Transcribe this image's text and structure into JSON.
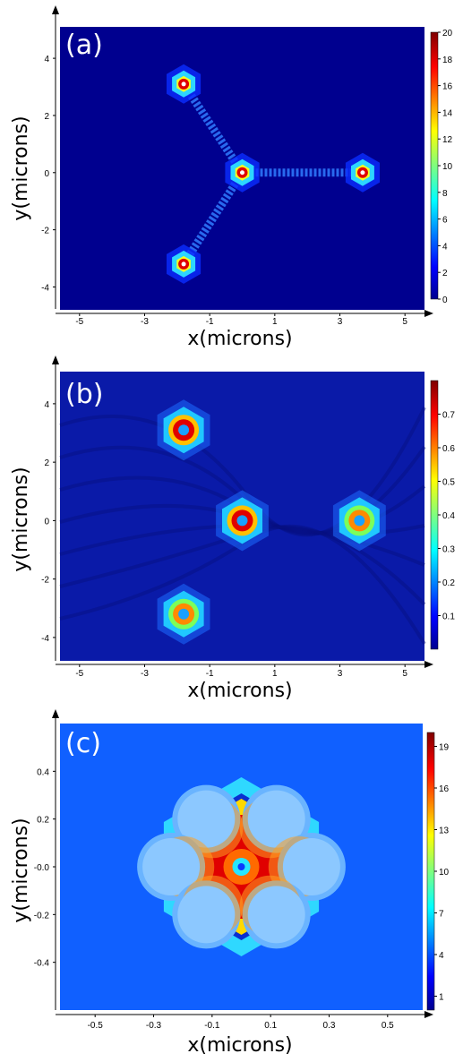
{
  "chart_data": [
    {
      "type": "heatmap",
      "panel_label": "(a)",
      "xlabel": "x(microns)",
      "ylabel": "y(microns)",
      "xlim": [
        -5.6,
        5.6
      ],
      "ylim": [
        -4.8,
        5.1
      ],
      "xticks": [
        "-5",
        "-3",
        "-1",
        "1",
        "3",
        "5"
      ],
      "xtick_values": [
        -5,
        -3,
        -1,
        1,
        3,
        5
      ],
      "yticks": [
        "4",
        "2",
        "0",
        "-2",
        "-4"
      ],
      "ytick_values": [
        4,
        2,
        0,
        -2,
        -4
      ],
      "colorbar": {
        "min": 0,
        "max": 20,
        "ticks": [
          "20",
          "18",
          "16",
          "14",
          "12",
          "10",
          "8",
          "6",
          "4",
          "2",
          "0"
        ],
        "tick_values": [
          20,
          18,
          16,
          14,
          12,
          10,
          8,
          6,
          4,
          2,
          0
        ]
      },
      "features": [
        {
          "kind": "spot",
          "x": -1.8,
          "y": 3.1,
          "peak": 20
        },
        {
          "kind": "spot",
          "x": 0.0,
          "y": 0.0,
          "peak": 20
        },
        {
          "kind": "spot",
          "x": 3.7,
          "y": 0.0,
          "peak": 20
        },
        {
          "kind": "spot",
          "x": -1.8,
          "y": -3.2,
          "peak": 20
        },
        {
          "kind": "waveguide",
          "from": [
            0.0,
            0.0
          ],
          "to": [
            -1.8,
            3.1
          ]
        },
        {
          "kind": "waveguide",
          "from": [
            0.0,
            0.0
          ],
          "to": [
            3.7,
            0.0
          ]
        },
        {
          "kind": "waveguide",
          "from": [
            0.0,
            0.0
          ],
          "to": [
            -1.8,
            -3.2
          ]
        }
      ]
    },
    {
      "type": "heatmap",
      "panel_label": "(b)",
      "xlabel": "x(microns)",
      "ylabel": "y(microns)",
      "xlim": [
        -5.6,
        5.6
      ],
      "ylim": [
        -4.8,
        5.1
      ],
      "xticks": [
        "-5",
        "-3",
        "-1",
        "1",
        "3",
        "5"
      ],
      "xtick_values": [
        -5,
        -3,
        -1,
        1,
        3,
        5
      ],
      "yticks": [
        "4",
        "2",
        "0",
        "-2",
        "-4"
      ],
      "ytick_values": [
        4,
        2,
        0,
        -2,
        -4
      ],
      "colorbar": {
        "min": 0,
        "max": 0.8,
        "ticks": [
          "0.7",
          "0.6",
          "0.5",
          "0.4",
          "0.3",
          "0.2",
          "0.1"
        ],
        "tick_values": [
          0.7,
          0.6,
          0.5,
          0.4,
          0.3,
          0.2,
          0.1
        ]
      },
      "features": [
        {
          "kind": "ring",
          "x": -1.8,
          "y": 3.1,
          "peak": 0.75
        },
        {
          "kind": "ring",
          "x": 0.0,
          "y": 0.0,
          "peak": 0.8
        },
        {
          "kind": "ring",
          "x": 3.6,
          "y": 0.0,
          "peak": 0.55
        },
        {
          "kind": "ring",
          "x": -1.8,
          "y": -3.2,
          "peak": 0.65
        }
      ]
    },
    {
      "type": "heatmap",
      "panel_label": "(c)",
      "xlabel": "x(microns)",
      "ylabel": "y(microns)",
      "xlim": [
        -0.62,
        0.62
      ],
      "ylim": [
        -0.6,
        0.6
      ],
      "xticks": [
        "-0.5",
        "-0.3",
        "-0.1",
        "0.1",
        "0.3",
        "0.5"
      ],
      "xtick_values": [
        -0.5,
        -0.3,
        -0.1,
        0.1,
        0.3,
        0.5
      ],
      "yticks": [
        "0.4",
        "0.2",
        "-0.0",
        "-0.2",
        "-0.4"
      ],
      "ytick_values": [
        0.4,
        0.2,
        0.0,
        -0.2,
        -0.4
      ],
      "colorbar": {
        "min": 0,
        "max": 20,
        "ticks": [
          "19",
          "16",
          "13",
          "10",
          "7",
          "4",
          "1"
        ],
        "tick_values": [
          19,
          16,
          13,
          10,
          7,
          4,
          1
        ]
      },
      "features": [
        {
          "kind": "ring",
          "x": 0.0,
          "y": 0.0,
          "peak": 20
        },
        {
          "kind": "hole",
          "x": -0.12,
          "y": 0.2
        },
        {
          "kind": "hole",
          "x": 0.12,
          "y": 0.2
        },
        {
          "kind": "hole",
          "x": -0.24,
          "y": 0.0
        },
        {
          "kind": "hole",
          "x": 0.24,
          "y": 0.0
        },
        {
          "kind": "hole",
          "x": -0.12,
          "y": -0.2
        },
        {
          "kind": "hole",
          "x": 0.12,
          "y": -0.2
        }
      ]
    }
  ]
}
